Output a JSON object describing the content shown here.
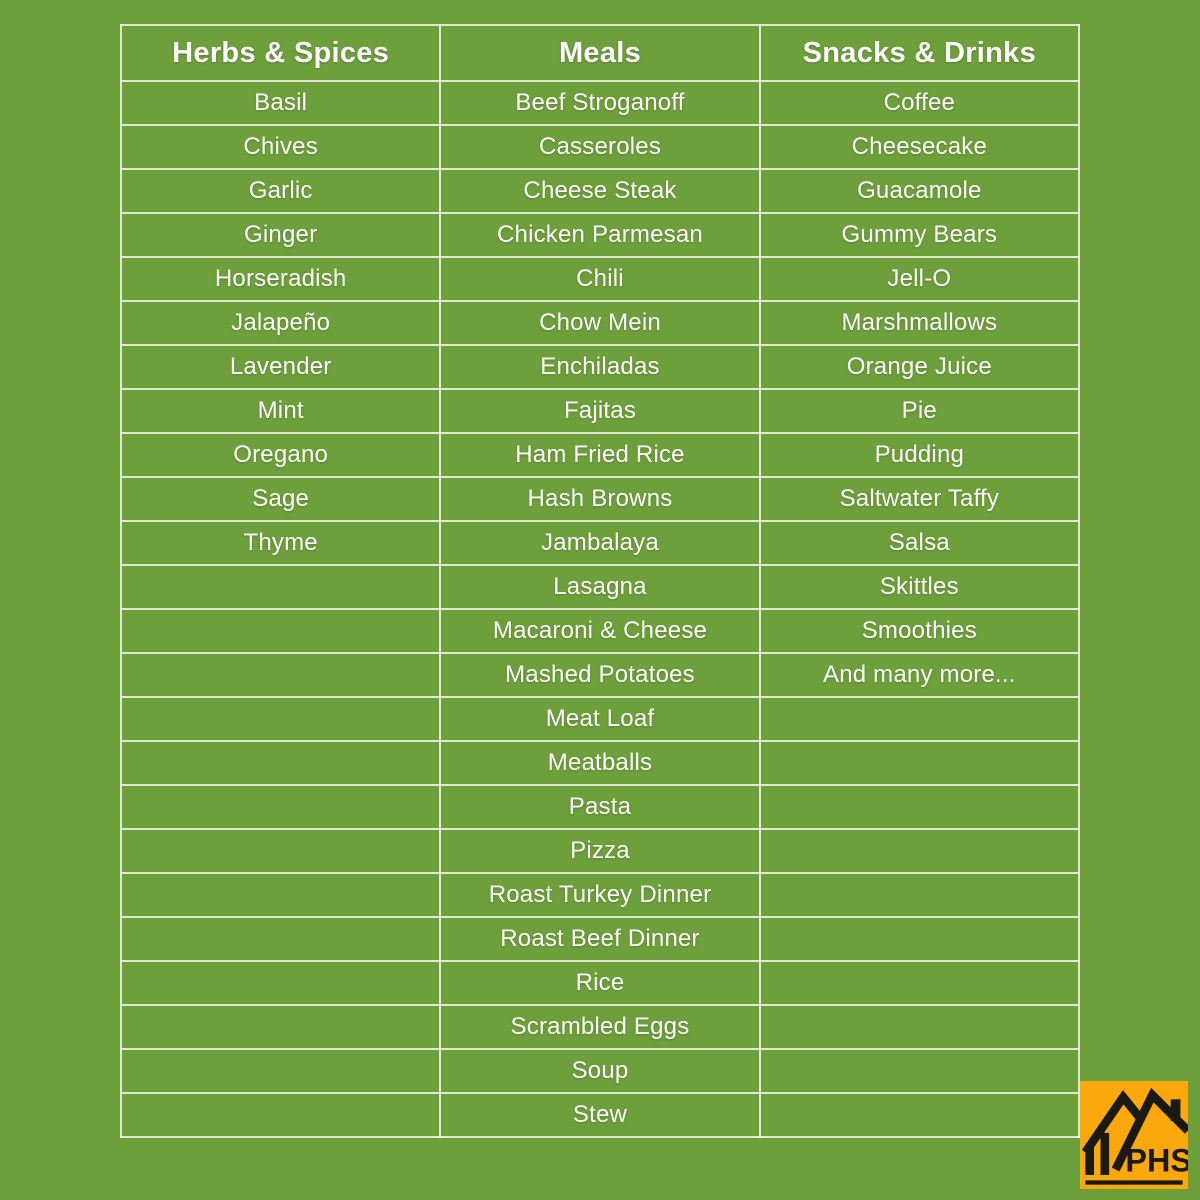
{
  "page": {
    "background_color": "#6D9F3A",
    "grid_line_color": "rgba(255,255,255,0.78)",
    "text_color": "#FFFFFF"
  },
  "chart_data": {
    "type": "table",
    "title": "",
    "columns": [
      "Herbs & Spices",
      "Meals",
      "Snacks & Drinks"
    ],
    "column_items": {
      "herbs_and_spices": [
        "Basil",
        "Chives",
        "Garlic",
        "Ginger",
        "Horseradish",
        "Jalapeño",
        "Lavender",
        "Mint",
        "Oregano",
        "Sage",
        "Thyme"
      ],
      "meals": [
        "Beef Stroganoff",
        "Casseroles",
        "Cheese Steak",
        "Chicken Parmesan",
        "Chili",
        "Chow Mein",
        "Enchiladas",
        "Fajitas",
        "Ham Fried Rice",
        "Hash Browns",
        "Jambalaya",
        "Lasagna",
        "Macaroni & Cheese",
        "Mashed Potatoes",
        "Meat Loaf",
        "Meatballs",
        "Pasta",
        "Pizza",
        "Roast Turkey Dinner",
        "Roast Beef Dinner",
        "Rice",
        "Scrambled Eggs",
        "Soup",
        "Stew"
      ],
      "snacks_and_drinks": [
        "Coffee",
        "Cheesecake",
        "Guacamole",
        "Gummy Bears",
        "Jell-O",
        "Marshmallows",
        "Orange Juice",
        "Pie",
        "Pudding",
        "Saltwater Taffy",
        "Salsa",
        "Skittles",
        "Smoothies",
        "And many more..."
      ]
    }
  },
  "table": {
    "headers": [
      "Herbs & Spices",
      "Meals",
      "Snacks & Drinks"
    ],
    "rows": [
      [
        "Basil",
        "Beef Stroganoff",
        "Coffee"
      ],
      [
        "Chives",
        "Casseroles",
        "Cheesecake"
      ],
      [
        "Garlic",
        "Cheese Steak",
        "Guacamole"
      ],
      [
        "Ginger",
        "Chicken Parmesan",
        "Gummy Bears"
      ],
      [
        "Horseradish",
        "Chili",
        "Jell-O"
      ],
      [
        "Jalapeño",
        "Chow Mein",
        "Marshmallows"
      ],
      [
        "Lavender",
        "Enchiladas",
        "Orange Juice"
      ],
      [
        "Mint",
        "Fajitas",
        "Pie"
      ],
      [
        "Oregano",
        "Ham Fried Rice",
        "Pudding"
      ],
      [
        "Sage",
        "Hash Browns",
        "Saltwater Taffy"
      ],
      [
        "Thyme",
        "Jambalaya",
        "Salsa"
      ],
      [
        "",
        "Lasagna",
        "Skittles"
      ],
      [
        "",
        "Macaroni & Cheese",
        "Smoothies"
      ],
      [
        "",
        "Mashed Potatoes",
        "And many more..."
      ],
      [
        "",
        "Meat Loaf",
        ""
      ],
      [
        "",
        "Meatballs",
        ""
      ],
      [
        "",
        "Pasta",
        ""
      ],
      [
        "",
        "Pizza",
        ""
      ],
      [
        "",
        "Roast Turkey Dinner",
        ""
      ],
      [
        "",
        "Roast Beef Dinner",
        ""
      ],
      [
        "",
        "Rice",
        ""
      ],
      [
        "",
        "Scrambled Eggs",
        ""
      ],
      [
        "",
        "Soup",
        ""
      ],
      [
        "",
        "Stew",
        ""
      ]
    ]
  },
  "logo": {
    "text": "PHS",
    "background_color": "#FAA80C",
    "icon_color": "#1A1A12"
  }
}
